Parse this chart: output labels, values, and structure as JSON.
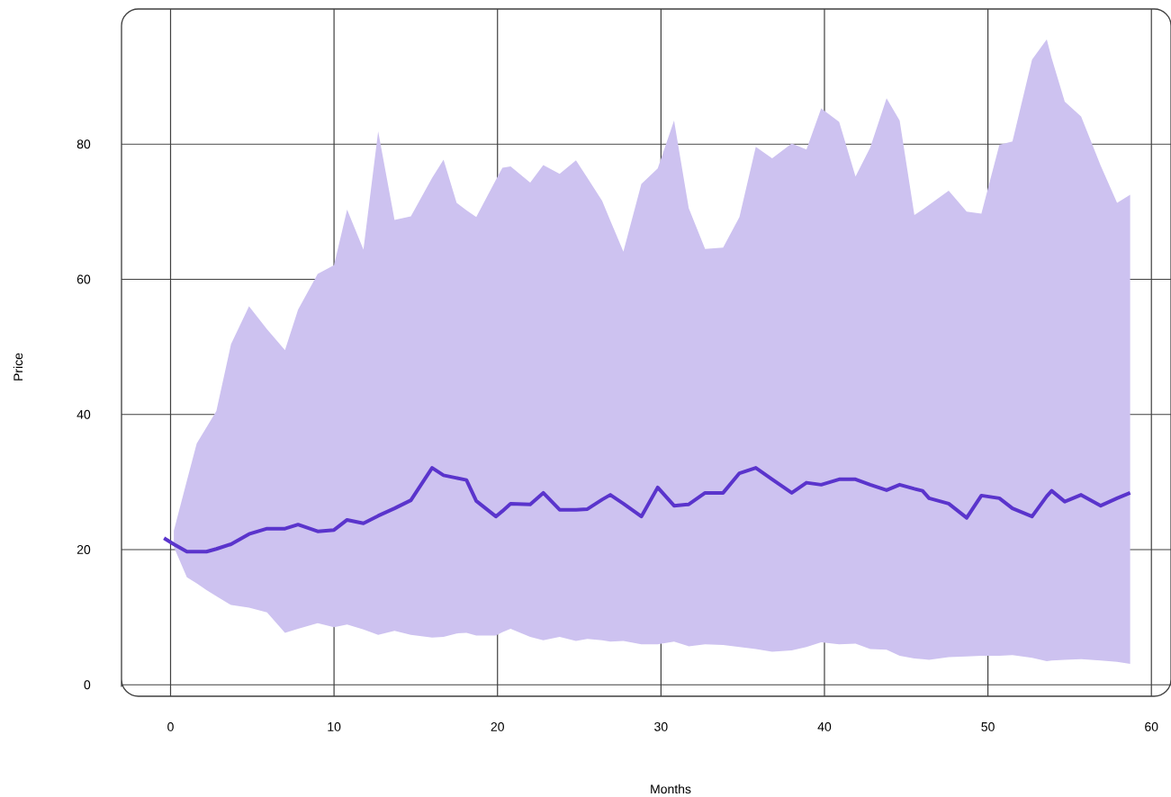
{
  "chart_data": {
    "type": "line",
    "xlabel": "Months",
    "ylabel": "Price",
    "xlim": [
      -3,
      61.2
    ],
    "ylim": [
      -1.7,
      100
    ],
    "xticks": [
      0,
      10,
      20,
      30,
      40,
      50,
      60
    ],
    "yticks": [
      0,
      20,
      40,
      60,
      80
    ],
    "grid": true,
    "series": [
      {
        "color": "#5a34cc",
        "x": [
          -0.4,
          0.2,
          1.0,
          1.6,
          2.2,
          2.8,
          3.7,
          4.8,
          5.9,
          7.0,
          7.8,
          9.0,
          10.0,
          10.8,
          11.8,
          12.7,
          13.7,
          14.7,
          16.0,
          16.7,
          17.5,
          18.1,
          18.7,
          19.9,
          20.3,
          20.8,
          22.0,
          22.8,
          23.8,
          24.8,
          25.5,
          26.4,
          26.9,
          27.7,
          28.8,
          29.8,
          30.8,
          31.7,
          32.7,
          33.8,
          34.8,
          35.8,
          36.8,
          38.0,
          38.9,
          39.8,
          40.9,
          41.9,
          42.8,
          43.8,
          44.6,
          45.5,
          46.0,
          46.4,
          47.6,
          48.7,
          49.6,
          50.7,
          51.5,
          52.7,
          53.6,
          53.9,
          54.7,
          55.7,
          56.9,
          57.9,
          58.7
        ],
        "values": [
          21.7,
          20.8,
          19.7,
          19.7,
          19.7,
          20.1,
          20.8,
          22.3,
          23.1,
          23.1,
          23.7,
          22.7,
          22.9,
          24.4,
          23.9,
          25.0,
          26.1,
          27.3,
          32.1,
          31.0,
          30.6,
          30.3,
          27.2,
          24.9,
          25.7,
          26.8,
          26.7,
          28.4,
          25.9,
          25.9,
          26.0,
          27.4,
          28.1,
          26.8,
          24.9,
          29.2,
          26.5,
          26.7,
          28.4,
          28.4,
          31.3,
          32.1,
          30.4,
          28.4,
          29.9,
          29.6,
          30.4,
          30.4,
          29.6,
          28.8,
          29.6,
          29.0,
          28.7,
          27.6,
          26.8,
          24.7,
          28.0,
          27.6,
          26.1,
          24.9,
          27.9,
          28.7,
          27.1,
          28.1,
          26.5,
          27.6,
          28.4
        ],
        "upper": [
          null,
          22.8,
          30.2,
          35.7,
          38.1,
          40.5,
          50.4,
          56,
          52.6,
          49.5,
          55.5,
          60.8,
          62.1,
          70.3,
          64.4,
          81.9,
          68.8,
          69.3,
          75.0,
          77.7,
          71.3,
          70.2,
          69.2,
          74.7,
          76.5,
          76.7,
          74.3,
          76.9,
          75.6,
          77.6,
          75.0,
          71.6,
          68.7,
          64.1,
          74.1,
          76.4,
          83.5,
          70.5,
          64.5,
          64.7,
          69.2,
          79.6,
          77.9,
          80.1,
          79.2,
          85.3,
          83.3,
          75.2,
          79.5,
          86.8,
          83.5,
          69.5,
          70.3,
          71.0,
          73.1,
          70.0,
          69.7,
          79.9,
          80.4,
          92.5,
          95.5,
          92.7,
          86.3,
          84.1,
          76.8,
          71.3,
          72.5
        ],
        "lower": [
          null,
          20.4,
          15.9,
          15.0,
          14.0,
          13.1,
          11.8,
          11.4,
          10.7,
          7.7,
          8.3,
          9.1,
          8.5,
          8.9,
          8.2,
          7.4,
          8.0,
          7.4,
          7.0,
          7.1,
          7.6,
          7.7,
          7.3,
          7.3,
          7.8,
          8.3,
          7.1,
          6.6,
          7.1,
          6.5,
          6.8,
          6.6,
          6.4,
          6.5,
          6.0,
          6.0,
          6.4,
          5.7,
          6.0,
          5.9,
          5.6,
          5.3,
          4.9,
          5.1,
          5.6,
          6.3,
          6.0,
          6.1,
          5.3,
          5.2,
          4.3,
          3.9,
          3.8,
          3.7,
          4.1,
          4.2,
          4.3,
          4.3,
          4.4,
          4.0,
          3.5,
          3.6,
          3.7,
          3.8,
          3.6,
          3.4,
          3.1
        ]
      }
    ]
  }
}
